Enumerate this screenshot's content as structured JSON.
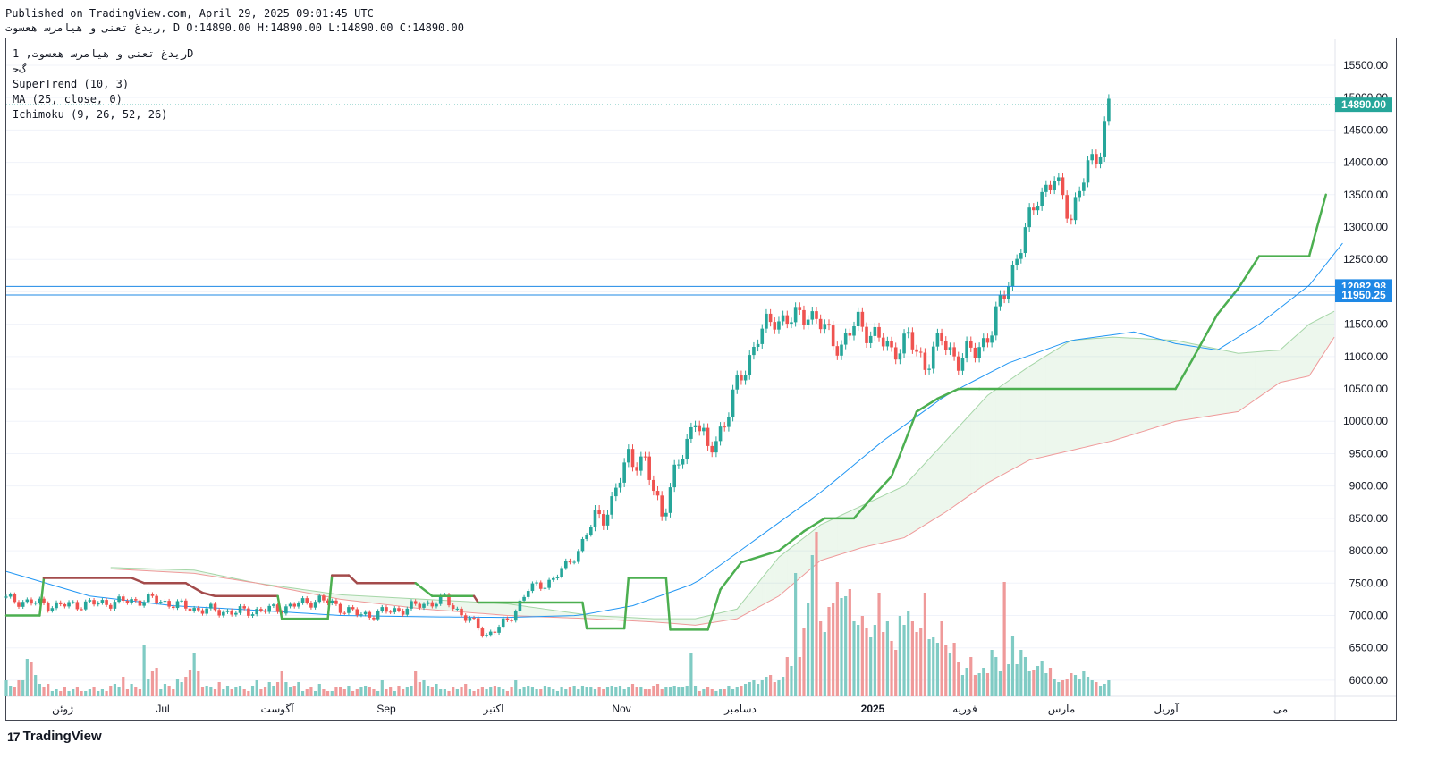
{
  "header": {
    "published": "Published on TradingView.com, April 29, 2025 09:01:45 UTC",
    "ohlc_line": "ﺭﯾﺪﻍ ﺗﻌﻨﯽ ﻭ ﻫﯿﺎﻣﺮﺳ ﻫﻌﺴﻮﺕ, D O:14890.00 H:14890.00 L:14890.00 C:14890.00"
  },
  "legend": {
    "symbol": "ﺭﯾﺪﻍ ﺗﻌﻨﯽ ﻭ ﻫﯿﺎﻣﺮﺳ ﻫﻌﺴﻮﺕ, 1D",
    "sub": "ﮒﺣ",
    "supertrend": "SuperTrend (10, 3)",
    "ma": "MA (25, close, 0)",
    "ichimoku": "Ichimoku (9, 26, 52, 26)"
  },
  "brand": {
    "icon": "tradingview-logo-icon",
    "name": "TradingView",
    "logo": "17"
  },
  "colors": {
    "up": "#26a69a",
    "down": "#ef5350",
    "supertrend_up": "#4caf50",
    "supertrend_down": "#a34b4b",
    "ma": "#2196f3",
    "hline": "#2962ff",
    "badge_last": "#26a69a",
    "badge_line": "#1e88e5",
    "vol_up": "#80cbc4",
    "vol_down": "#ef9a9a"
  },
  "chart_data": {
    "type": "candlestick",
    "y_ticks": [
      "15500.00",
      "15000.00",
      "14500.00",
      "14000.00",
      "13500.00",
      "13000.00",
      "12500.00",
      "12000.00",
      "11500.00",
      "11000.00",
      "10500.00",
      "10000.00",
      "9500.00",
      "9000.00",
      "8500.00",
      "8000.00",
      "7500.00",
      "7000.00",
      "6500.00",
      "6000.00"
    ],
    "y_range": [
      5750,
      15900
    ],
    "x_labels": [
      "ژوئن",
      "Jul",
      "آگوست",
      "Sep",
      "اکتبر",
      "Nov",
      "دسامبر",
      "2025",
      "فوریه",
      "مارس",
      "آوریل",
      "می"
    ],
    "price_labels": {
      "last": "14890.00",
      "line1": "12082.98",
      "line2": "11950.25"
    },
    "last_price": 14890,
    "horizontal_lines": [
      12082.98,
      11950.25
    ],
    "anchors": [
      [
        0,
        7250
      ],
      [
        12,
        7150
      ],
      [
        25,
        7200
      ],
      [
        35,
        7250
      ],
      [
        45,
        7100
      ],
      [
        55,
        7050
      ],
      [
        65,
        7100
      ],
      [
        75,
        7250
      ],
      [
        85,
        7000
      ],
      [
        95,
        7100
      ],
      [
        105,
        7250
      ],
      [
        115,
        6700
      ],
      [
        120,
        6900
      ],
      [
        125,
        7400
      ],
      [
        131,
        7550
      ],
      [
        137,
        8000
      ],
      [
        141,
        8500
      ],
      [
        145,
        8700
      ],
      [
        149,
        9500
      ],
      [
        153,
        9300
      ],
      [
        157,
        8600
      ],
      [
        161,
        9300
      ],
      [
        165,
        10100
      ],
      [
        168,
        9500
      ],
      [
        172,
        10000
      ],
      [
        176,
        10700
      ],
      [
        180,
        11300
      ],
      [
        184,
        11600
      ],
      [
        188,
        11550
      ],
      [
        192,
        11700
      ],
      [
        196,
        11400
      ],
      [
        200,
        11150
      ],
      [
        204,
        11550
      ],
      [
        208,
        11300
      ],
      [
        212,
        11100
      ],
      [
        216,
        11250
      ],
      [
        220,
        10900
      ],
      [
        224,
        11250
      ],
      [
        228,
        10950
      ],
      [
        232,
        11100
      ],
      [
        236,
        11400
      ],
      [
        240,
        12200
      ],
      [
        243,
        12700
      ],
      [
        247,
        13500
      ],
      [
        251,
        13700
      ],
      [
        255,
        13200
      ],
      [
        259,
        13900
      ],
      [
        262,
        14250
      ],
      [
        264,
        14890
      ]
    ],
    "anchor_note": "x = trading-day index (0 = left of Jun 2024 chart start), y = close price",
    "volume_max_note": "relative volumes, 0-1",
    "supertrend": [
      [
        0,
        7000
      ],
      [
        8,
        7000
      ],
      [
        9,
        7580
      ],
      [
        30,
        7580
      ],
      [
        33,
        7500
      ],
      [
        43,
        7500
      ],
      [
        47,
        7350
      ],
      [
        50,
        7300
      ],
      [
        65,
        7300
      ],
      [
        66,
        6950
      ],
      [
        77,
        6950
      ],
      [
        78,
        7620
      ],
      [
        82,
        7620
      ],
      [
        84,
        7500
      ],
      [
        98,
        7500
      ],
      [
        102,
        7300
      ],
      [
        112,
        7300
      ],
      [
        113,
        7200
      ],
      [
        138,
        7200
      ],
      [
        139,
        6800
      ],
      [
        148,
        6800
      ],
      [
        149,
        7580
      ],
      [
        158,
        7580
      ],
      [
        159,
        6780
      ],
      [
        168,
        6780
      ],
      [
        171,
        7400
      ],
      [
        176,
        7820
      ],
      [
        185,
        8000
      ],
      [
        191,
        8300
      ],
      [
        196,
        8500
      ],
      [
        203,
        8500
      ],
      [
        207,
        8800
      ],
      [
        212,
        9150
      ],
      [
        218,
        10150
      ],
      [
        223,
        10350
      ],
      [
        228,
        10500
      ],
      [
        233,
        10500
      ],
      [
        280,
        10500
      ],
      [
        284,
        10950
      ],
      [
        290,
        11650
      ],
      [
        295,
        12050
      ],
      [
        300,
        12550
      ],
      [
        312,
        12550
      ],
      [
        316,
        13500
      ]
    ],
    "ma": [
      [
        0,
        7680
      ],
      [
        20,
        7300
      ],
      [
        40,
        7150
      ],
      [
        60,
        7080
      ],
      [
        80,
        7000
      ],
      [
        100,
        6980
      ],
      [
        120,
        6970
      ],
      [
        137,
        7000
      ],
      [
        150,
        7150
      ],
      [
        165,
        7500
      ],
      [
        180,
        8200
      ],
      [
        195,
        8900
      ],
      [
        210,
        9700
      ],
      [
        225,
        10400
      ],
      [
        240,
        10900
      ],
      [
        255,
        11250
      ],
      [
        270,
        11380
      ],
      [
        280,
        11200
      ],
      [
        290,
        11100
      ],
      [
        300,
        11500
      ],
      [
        312,
        12100
      ],
      [
        320,
        12750
      ]
    ],
    "span_a": [
      [
        25,
        7740
      ],
      [
        45,
        7700
      ],
      [
        60,
        7500
      ],
      [
        80,
        7320
      ],
      [
        100,
        7250
      ],
      [
        120,
        7180
      ],
      [
        140,
        7000
      ],
      [
        155,
        6950
      ],
      [
        165,
        6950
      ],
      [
        175,
        7100
      ],
      [
        185,
        7900
      ],
      [
        195,
        8400
      ],
      [
        205,
        8700
      ],
      [
        215,
        9000
      ],
      [
        225,
        9700
      ],
      [
        235,
        10400
      ],
      [
        245,
        10850
      ],
      [
        255,
        11250
      ],
      [
        265,
        11300
      ],
      [
        280,
        11250
      ],
      [
        295,
        11050
      ],
      [
        305,
        11100
      ],
      [
        312,
        11500
      ],
      [
        318,
        11700
      ]
    ],
    "span_b": [
      [
        25,
        7720
      ],
      [
        45,
        7650
      ],
      [
        60,
        7500
      ],
      [
        80,
        7250
      ],
      [
        100,
        7100
      ],
      [
        120,
        7000
      ],
      [
        140,
        6950
      ],
      [
        155,
        6900
      ],
      [
        165,
        6850
      ],
      [
        175,
        6950
      ],
      [
        185,
        7300
      ],
      [
        195,
        7850
      ],
      [
        205,
        8050
      ],
      [
        215,
        8200
      ],
      [
        225,
        8600
      ],
      [
        235,
        9050
      ],
      [
        245,
        9400
      ],
      [
        255,
        9550
      ],
      [
        265,
        9700
      ],
      [
        280,
        10000
      ],
      [
        295,
        10150
      ],
      [
        305,
        10600
      ],
      [
        312,
        10700
      ],
      [
        318,
        11300
      ]
    ],
    "volumes": [
      0.09,
      0.06,
      0.05,
      0.09,
      0.09,
      0.21,
      0.19,
      0.12,
      0.07,
      0.05,
      0.07,
      0.03,
      0.04,
      0.03,
      0.05,
      0.03,
      0.04,
      0.05,
      0.03,
      0.03,
      0.04,
      0.05,
      0.03,
      0.04,
      0.03,
      0.06,
      0.07,
      0.05,
      0.11,
      0.04,
      0.07,
      0.05,
      0.04,
      0.29,
      0.1,
      0.14,
      0.16,
      0.04,
      0.07,
      0.06,
      0.04,
      0.1,
      0.08,
      0.11,
      0.15,
      0.24,
      0.14,
      0.05,
      0.06,
      0.05,
      0.04,
      0.08,
      0.04,
      0.06,
      0.04,
      0.05,
      0.06,
      0.04,
      0.03,
      0.06,
      0.09,
      0.04,
      0.05,
      0.08,
      0.06,
      0.08,
      0.14,
      0.08,
      0.05,
      0.06,
      0.08,
      0.03,
      0.04,
      0.05,
      0.03,
      0.07,
      0.04,
      0.03,
      0.03,
      0.05,
      0.05,
      0.04,
      0.06,
      0.03,
      0.04,
      0.05,
      0.06,
      0.05,
      0.04,
      0.03,
      0.09,
      0.04,
      0.05,
      0.03,
      0.06,
      0.04,
      0.05,
      0.06,
      0.14,
      0.08,
      0.09,
      0.06,
      0.05,
      0.07,
      0.04,
      0.04,
      0.03,
      0.05,
      0.04,
      0.05,
      0.07,
      0.04,
      0.03,
      0.04,
      0.05,
      0.04,
      0.05,
      0.06,
      0.05,
      0.04,
      0.03,
      0.05,
      0.09,
      0.04,
      0.05,
      0.06,
      0.05,
      0.04,
      0.04,
      0.06,
      0.05,
      0.04,
      0.03,
      0.05,
      0.04,
      0.05,
      0.06,
      0.04,
      0.06,
      0.05,
      0.05,
      0.04,
      0.05,
      0.04,
      0.05,
      0.06,
      0.05,
      0.06,
      0.04,
      0.05,
      0.07,
      0.05,
      0.05,
      0.04,
      0.04,
      0.06,
      0.07,
      0.04,
      0.05,
      0.05,
      0.06,
      0.05,
      0.05,
      0.06,
      0.24,
      0.06,
      0.03,
      0.04,
      0.05,
      0.04,
      0.03,
      0.04,
      0.04,
      0.06,
      0.04,
      0.05,
      0.06,
      0.07,
      0.08,
      0.09,
      0.07,
      0.09,
      0.11,
      0.12,
      0.08,
      0.09,
      0.11,
      0.22,
      0.17,
      0.69,
      0.22,
      0.38,
      0.52,
      0.79,
      0.92,
      0.42,
      0.36,
      0.5,
      0.52,
      0.64,
      0.55,
      0.56,
      0.6,
      0.42,
      0.4,
      0.45,
      0.38,
      0.33,
      0.4,
      0.58,
      0.36,
      0.42,
      0.31,
      0.26,
      0.45,
      0.4,
      0.48,
      0.42,
      0.36,
      0.38,
      0.58,
      0.32,
      0.33,
      0.3,
      0.42,
      0.29,
      0.24,
      0.3,
      0.19,
      0.12,
      0.16,
      0.22,
      0.12,
      0.13,
      0.16,
      0.13,
      0.26,
      0.22,
      0.14,
      0.64,
      0.18,
      0.34,
      0.18,
      0.26,
      0.22,
      0.14,
      0.15,
      0.17,
      0.2,
      0.13,
      0.16,
      0.1,
      0.08,
      0.09,
      0.1,
      0.13,
      0.12,
      0.1,
      0.14,
      0.11,
      0.09,
      0.08,
      0.06,
      0.07,
      0.09,
      0.08,
      0.06,
      0.1,
      0.07,
      0.06,
      0.08,
      0.07,
      0.06,
      0.06,
      0.05,
      0.08,
      0.06,
      0.09,
      0.05,
      0.07,
      0.06,
      0.05,
      0.1,
      0.07,
      0.06,
      0.05,
      0.08,
      0.06,
      0.07,
      0.05,
      0.06,
      0.28,
      0.05,
      0.08,
      0.07,
      0.06,
      0.14,
      0.04,
      0.06,
      0.09,
      0.24,
      0.2,
      0.22,
      0.18,
      0.21,
      0.14,
      0.12,
      0.2,
      0.17,
      0.14,
      0.18,
      0.21,
      0.2,
      0.41,
      0.44,
      0.46,
      0.55,
      0.88,
      0.35,
      0.36,
      0.45,
      0.13,
      0.41,
      0.75,
      0.52
    ]
  }
}
